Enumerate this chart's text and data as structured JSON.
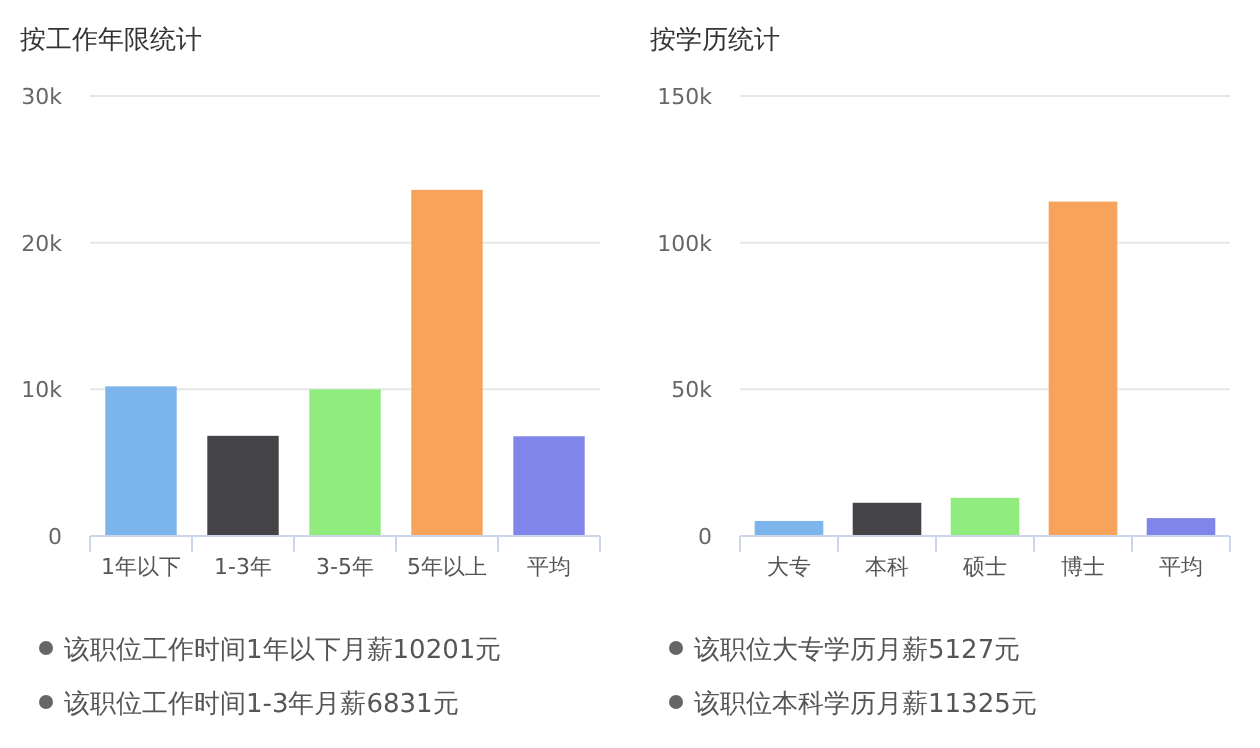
{
  "chart_data": [
    {
      "type": "bar",
      "title": "按工作年限统计",
      "categories": [
        "1年以下",
        "1-3年",
        "3-5年",
        "5年以上",
        "平均"
      ],
      "values": [
        10201,
        6831,
        10000,
        23600,
        6800
      ],
      "colors": [
        "#7cb5ec",
        "#434348",
        "#90ed7d",
        "#f7a35c",
        "#8085e9"
      ],
      "ylim": [
        0,
        30000
      ],
      "yticks": [
        0,
        {
          "value": 10000,
          "label": "10k"
        },
        {
          "value": 20000,
          "label": "20k"
        },
        {
          "value": 30000,
          "label": "30k"
        }
      ],
      "grid": "y",
      "annotations": [
        "该职位工作时间1年以下月薪10201元",
        "该职位工作时间1-3年月薪6831元"
      ]
    },
    {
      "type": "bar",
      "title": "按学历统计",
      "categories": [
        "大专",
        "本科",
        "硕士",
        "博士",
        "平均"
      ],
      "values": [
        5127,
        11325,
        13000,
        114000,
        6100
      ],
      "colors": [
        "#7cb5ec",
        "#434348",
        "#90ed7d",
        "#f7a35c",
        "#8085e9"
      ],
      "ylim": [
        0,
        150000
      ],
      "yticks": [
        0,
        {
          "value": 50000,
          "label": "50k"
        },
        {
          "value": 100000,
          "label": "100k"
        },
        {
          "value": 150000,
          "label": "150k"
        }
      ],
      "grid": "y",
      "annotations": [
        "该职位大专学历月薪5127元",
        "该职位本科学历月薪11325元"
      ]
    }
  ]
}
